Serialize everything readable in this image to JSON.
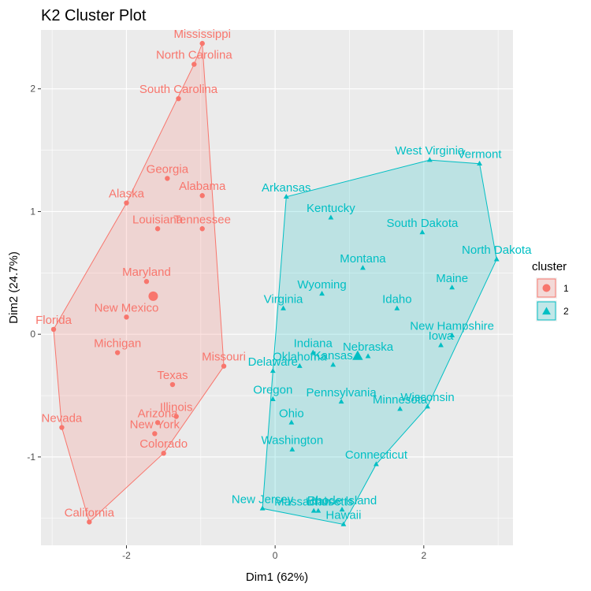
{
  "chart_data": {
    "type": "scatter",
    "title": "K2 Cluster Plot",
    "xlabel": "Dim1 (62%)",
    "ylabel": "Dim2 (24.7%)",
    "xlim": [
      -3.15,
      3.2
    ],
    "ylim": [
      -1.72,
      2.48
    ],
    "x_ticks": [
      -2,
      0,
      2
    ],
    "y_ticks": [
      -1,
      0,
      1,
      2
    ],
    "grid": true,
    "legend": {
      "title": "cluster",
      "position": "right"
    },
    "series": [
      {
        "name": "1",
        "color": "#F8766D",
        "marker": "circle",
        "centroid": [
          -1.64,
          0.31
        ],
        "points": [
          {
            "label": "Mississippi",
            "x": -0.98,
            "y": 2.37
          },
          {
            "label": "North Carolina",
            "x": -1.09,
            "y": 2.2
          },
          {
            "label": "South Carolina",
            "x": -1.3,
            "y": 1.92
          },
          {
            "label": "Georgia",
            "x": -1.45,
            "y": 1.27
          },
          {
            "label": "Alaska",
            "x": -2.0,
            "y": 1.07
          },
          {
            "label": "Alabama",
            "x": -0.98,
            "y": 1.13
          },
          {
            "label": "Louisiana",
            "x": -1.58,
            "y": 0.86
          },
          {
            "label": "Tennessee",
            "x": -0.98,
            "y": 0.86
          },
          {
            "label": "Maryland",
            "x": -1.73,
            "y": 0.43
          },
          {
            "label": "New Mexico",
            "x": -2.0,
            "y": 0.14
          },
          {
            "label": "Florida",
            "x": -2.98,
            "y": 0.04
          },
          {
            "label": "Michigan",
            "x": -2.12,
            "y": -0.15
          },
          {
            "label": "Missouri",
            "x": -0.69,
            "y": -0.26
          },
          {
            "label": "Texas",
            "x": -1.38,
            "y": -0.41
          },
          {
            "label": "Illinois",
            "x": -1.33,
            "y": -0.67
          },
          {
            "label": "Arizona",
            "x": -1.58,
            "y": -0.72
          },
          {
            "label": "New York",
            "x": -1.62,
            "y": -0.81
          },
          {
            "label": "Nevada",
            "x": -2.87,
            "y": -0.76
          },
          {
            "label": "Colorado",
            "x": -1.5,
            "y": -0.97
          },
          {
            "label": "California",
            "x": -2.5,
            "y": -1.53
          }
        ],
        "hull": [
          "Mississippi",
          "Missouri",
          "Colorado",
          "California",
          "Nevada",
          "Florida",
          "Alaska",
          "North Carolina"
        ]
      },
      {
        "name": "2",
        "color": "#00BFC4",
        "marker": "triangle",
        "centroid": [
          1.11,
          -0.18
        ],
        "points": [
          {
            "label": "West Virginia",
            "x": 2.08,
            "y": 1.42
          },
          {
            "label": "Vermont",
            "x": 2.75,
            "y": 1.39
          },
          {
            "label": "Arkansas",
            "x": 0.15,
            "y": 1.12
          },
          {
            "label": "Kentucky",
            "x": 0.75,
            "y": 0.95
          },
          {
            "label": "South Dakota",
            "x": 1.98,
            "y": 0.83
          },
          {
            "label": "North Dakota",
            "x": 2.98,
            "y": 0.61
          },
          {
            "label": "Montana",
            "x": 1.18,
            "y": 0.54
          },
          {
            "label": "Maine",
            "x": 2.38,
            "y": 0.38
          },
          {
            "label": "Wyoming",
            "x": 0.63,
            "y": 0.33
          },
          {
            "label": "Virginia",
            "x": 0.11,
            "y": 0.21
          },
          {
            "label": "Idaho",
            "x": 1.64,
            "y": 0.21
          },
          {
            "label": "New Hampshire",
            "x": 2.38,
            "y": -0.01
          },
          {
            "label": "Iowa",
            "x": 2.23,
            "y": -0.09
          },
          {
            "label": "Indiana",
            "x": 0.51,
            "y": -0.15
          },
          {
            "label": "Nebraska",
            "x": 1.25,
            "y": -0.18
          },
          {
            "label": "Oklahoma",
            "x": 0.33,
            "y": -0.26
          },
          {
            "label": "Kansas",
            "x": 0.78,
            "y": -0.25
          },
          {
            "label": "Delaware",
            "x": -0.03,
            "y": -0.3
          },
          {
            "label": "Oregon",
            "x": -0.03,
            "y": -0.53
          },
          {
            "label": "Pennsylvania",
            "x": 0.89,
            "y": -0.55
          },
          {
            "label": "Minnesota",
            "x": 1.68,
            "y": -0.61
          },
          {
            "label": "Wisconsin",
            "x": 2.05,
            "y": -0.59
          },
          {
            "label": "Ohio",
            "x": 0.22,
            "y": -0.72
          },
          {
            "label": "Washington",
            "x": 0.23,
            "y": -0.94
          },
          {
            "label": "Connecticut",
            "x": 1.36,
            "y": -1.06
          },
          {
            "label": "New Jersey",
            "x": -0.17,
            "y": -1.42
          },
          {
            "label": "Massachusetts",
            "x": 0.52,
            "y": -1.44
          },
          {
            "label": "Utah",
            "x": 0.58,
            "y": -1.44
          },
          {
            "label": "Rhode Island",
            "x": 0.9,
            "y": -1.43
          },
          {
            "label": "Hawaii",
            "x": 0.92,
            "y": -1.55
          }
        ],
        "hull": [
          "West Virginia",
          "Vermont",
          "North Dakota",
          "Wisconsin",
          "Connecticut",
          "Hawaii",
          "New Jersey",
          "Delaware",
          "Arkansas"
        ]
      }
    ]
  }
}
